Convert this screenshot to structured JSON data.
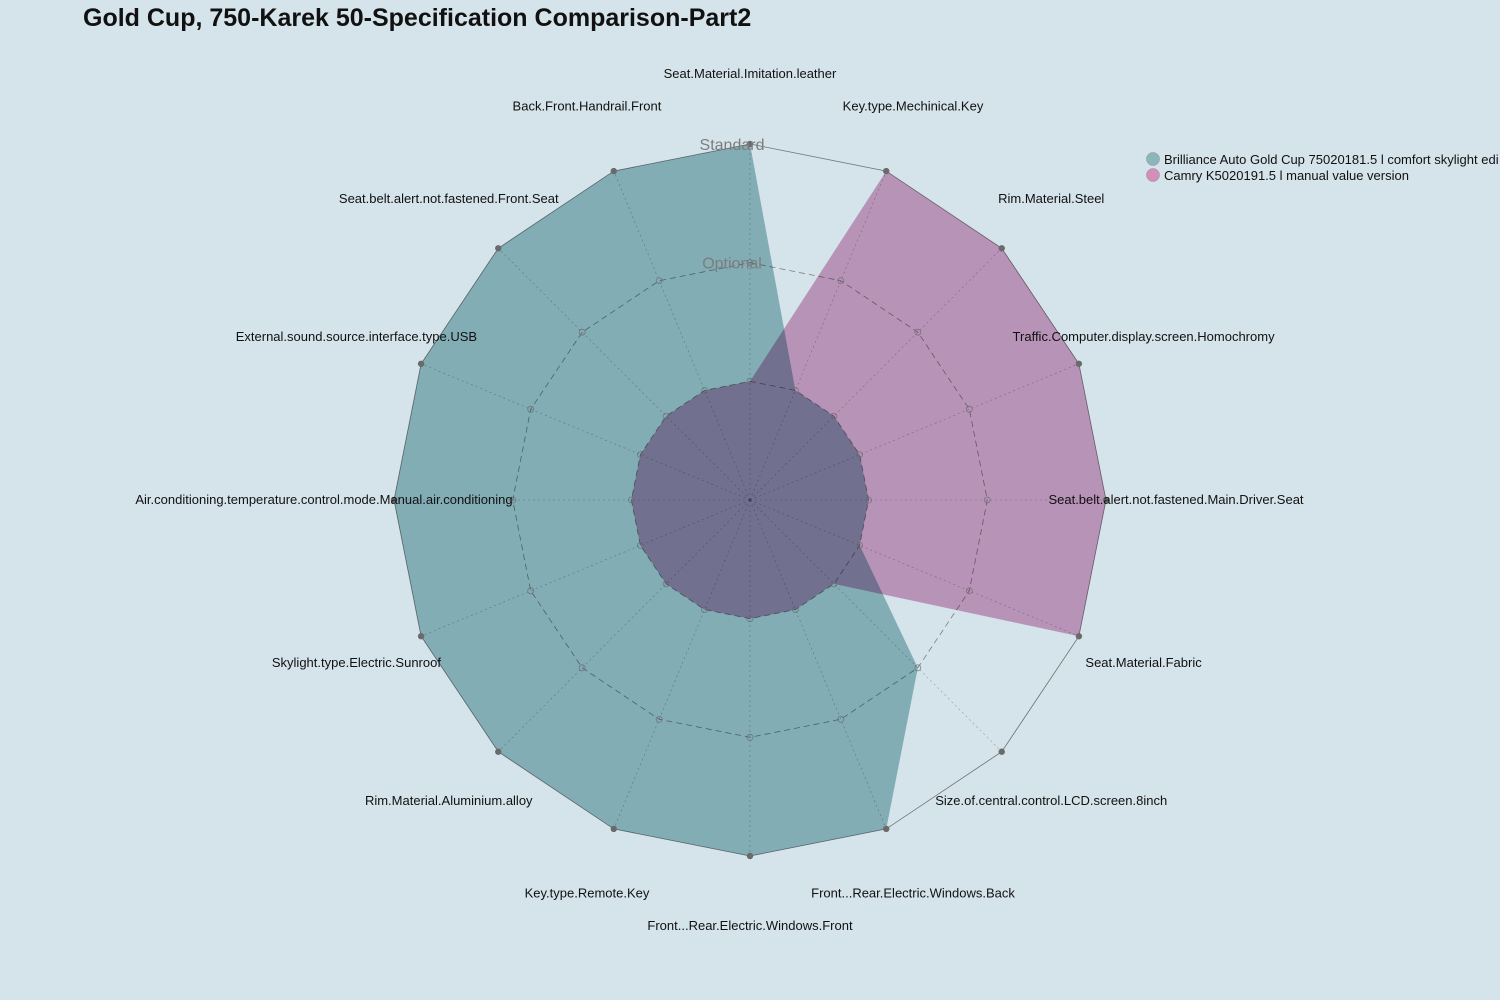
{
  "colors": {
    "background": "#d5e3ea",
    "series_1": "#8bb7bc",
    "series_2": "#d58ebc",
    "grid": "#555555",
    "point": "#6a6a6a"
  },
  "chart_data": {
    "type": "radar",
    "title": "Gold Cup, 750-Karek 50-Specification Comparison-Part2",
    "axes": [
      "Seat.Material.Imitation.leather",
      "Key.type.Mechinical.Key",
      "Rim.Material.Steel",
      "Traffic.Computer.display.screen.Homochromy",
      "Seat.belt.alert.not.fastened.Main.Driver.Seat",
      "Seat.Material.Fabric",
      "Size.of.central.control.LCD.screen.8inch",
      "Front...Rear.Electric.Windows.Back",
      "Front...Rear.Electric.Windows.Front",
      "Key.type.Remote.Key",
      "Rim.Material.Aluminium.alloy",
      "Skylight.type.Electric.Sunroof",
      "Air.conditioning.temperature.control.mode.Manual.air.conditioning",
      "External.sound.source.interface.type.USB",
      "Seat.belt.alert.not.fastened.Front.Seat",
      "Back.Front.Handrail.Front"
    ],
    "levels": [
      "",
      "Optional",
      "Standard"
    ],
    "level_values": [
      0,
      1,
      2
    ],
    "scale": {
      "min": -1,
      "max": 2
    },
    "series": [
      {
        "name": "Brilliance Auto Gold Cup 75020181.5 l comfort skylight edi",
        "values": [
          2,
          0,
          0,
          0,
          0,
          0,
          1,
          2,
          2,
          2,
          2,
          2,
          2,
          2,
          2,
          2
        ]
      },
      {
        "name": "Camry K5020191.5 l manual value version",
        "values": [
          0,
          2,
          2,
          2,
          2,
          2,
          0,
          0,
          0,
          0,
          0,
          0,
          0,
          0,
          0,
          0
        ]
      }
    ],
    "legend_position": "top-right",
    "grid": true
  }
}
